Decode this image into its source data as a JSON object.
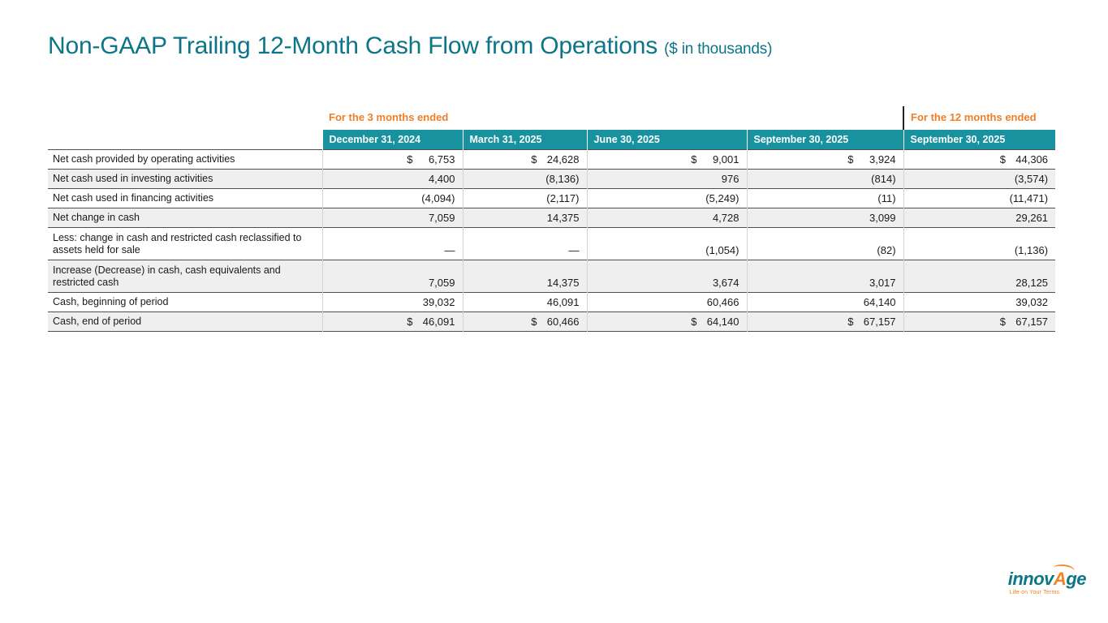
{
  "slide": {
    "title": "Non-GAAP Trailing 12-Month Cash Flow from Operations",
    "title_note": "($ in thousands)"
  },
  "table": {
    "group_headers": {
      "three_months": "For the 3 months ended",
      "twelve_months": "For the 12 months ended"
    },
    "columns": [
      "December 31, 2024",
      "March 31, 2025",
      "June 30, 2025",
      "September 30, 2025",
      "September 30, 2025"
    ],
    "rows": [
      {
        "label": "Net cash provided by operating activities",
        "dollar": "$",
        "values": [
          "6,753",
          "24,628",
          "9,001",
          "3,924",
          "44,306"
        ]
      },
      {
        "label": "Net cash used in investing activities",
        "values": [
          "4,400",
          "(8,136)",
          "976",
          "(814)",
          "(3,574)"
        ]
      },
      {
        "label": "Net cash used in financing activities",
        "values": [
          "(4,094)",
          "(2,117)",
          "(5,249)",
          "(11)",
          "(11,471)"
        ]
      },
      {
        "label": "Net change in cash",
        "values": [
          "7,059",
          "14,375",
          "4,728",
          "3,099",
          "29,261"
        ]
      },
      {
        "label": "Less: change in cash and restricted cash reclassified to assets held for sale",
        "values": [
          "—",
          "—",
          "(1,054)",
          "(82)",
          "(1,136)"
        ]
      },
      {
        "label": "Increase (Decrease) in cash, cash equivalents and restricted cash",
        "values": [
          "7,059",
          "14,375",
          "3,674",
          "3,017",
          "28,125"
        ]
      },
      {
        "label": "Cash, beginning of period",
        "values": [
          "39,032",
          "46,091",
          "60,466",
          "64,140",
          "39,032"
        ]
      },
      {
        "label": "Cash, end of period",
        "dollar": "$",
        "values": [
          "46,091",
          "60,466",
          "64,140",
          "67,157",
          "67,157"
        ]
      }
    ]
  },
  "logo": {
    "part1": "innov",
    "part2": "A",
    "part3": "ge",
    "tagline": "Life on Your Terms"
  },
  "colors": {
    "title_teal": "#0d7588",
    "header_teal": "#17929e",
    "accent_orange": "#f07e26",
    "row_alt_gray": "#efefef"
  }
}
